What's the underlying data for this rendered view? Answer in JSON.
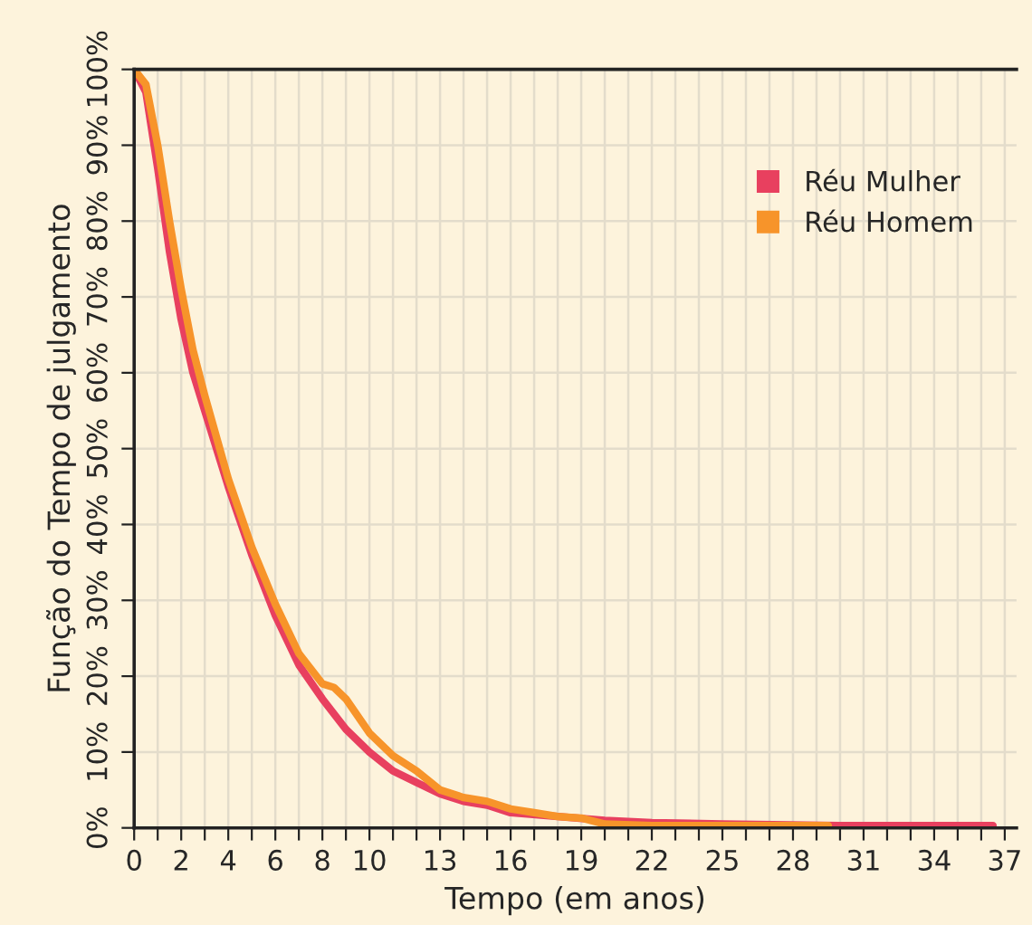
{
  "chart_data": {
    "type": "line",
    "xlabel": "Tempo (em anos)",
    "ylabel": "Função do Tempo de julgamento",
    "xlim": [
      0,
      37.5
    ],
    "ylim": [
      0,
      100
    ],
    "xticks": [
      0,
      {
        "value": 1,
        "label": null
      },
      2,
      {
        "value": 3,
        "label": null
      },
      4,
      {
        "value": 5,
        "label": null
      },
      6,
      {
        "value": 7,
        "label": null
      },
      8,
      {
        "value": 9,
        "label": null
      },
      10,
      {
        "value": 11,
        "label": null
      },
      {
        "value": 12,
        "label": null
      },
      13,
      {
        "value": 14,
        "label": null
      },
      {
        "value": 15,
        "label": null
      },
      16,
      {
        "value": 17,
        "label": null
      },
      {
        "value": 18,
        "label": null
      },
      19,
      {
        "value": 20,
        "label": null
      },
      {
        "value": 21,
        "label": null
      },
      22,
      {
        "value": 23,
        "label": null
      },
      {
        "value": 24,
        "label": null
      },
      25,
      {
        "value": 26,
        "label": null
      },
      {
        "value": 27,
        "label": null
      },
      28,
      {
        "value": 29,
        "label": null
      },
      {
        "value": 30,
        "label": null
      },
      31,
      {
        "value": 32,
        "label": null
      },
      {
        "value": 33,
        "label": null
      },
      34,
      {
        "value": 35,
        "label": null
      },
      {
        "value": 36,
        "label": null
      },
      37
    ],
    "yticks": [
      {
        "value": 0,
        "label": "0%"
      },
      {
        "value": 10,
        "label": "10%"
      },
      {
        "value": 20,
        "label": "20%"
      },
      {
        "value": 30,
        "label": "30%"
      },
      {
        "value": 40,
        "label": "40%"
      },
      {
        "value": 50,
        "label": "50%"
      },
      {
        "value": 60,
        "label": "60%"
      },
      {
        "value": 70,
        "label": "70%"
      },
      {
        "value": 80,
        "label": "80%"
      },
      {
        "value": 90,
        "label": "90%"
      },
      {
        "value": 100,
        "label": "100%"
      }
    ],
    "grid": true,
    "legend": "top right",
    "marker": "none",
    "line_style": "solid",
    "series": [
      {
        "name": "Réu Mulher",
        "color": "#e8405f",
        "x": [
          0,
          0.5,
          1,
          1.5,
          2,
          2.5,
          3,
          4,
          5,
          6,
          7,
          8,
          9,
          10,
          11,
          12,
          13,
          14,
          15,
          16,
          18,
          20,
          22,
          25,
          30,
          36.5
        ],
        "values": [
          100,
          97,
          87,
          76,
          67,
          60,
          55,
          45,
          36,
          28,
          21.5,
          17,
          13,
          10,
          7.5,
          6,
          4.5,
          3.5,
          3,
          2,
          1.5,
          1,
          0.7,
          0.5,
          0.3,
          0.3
        ]
      },
      {
        "name": "Réu Homem",
        "color": "#f7942a",
        "x": [
          0,
          0.5,
          1,
          1.5,
          2,
          2.5,
          3,
          4,
          5,
          6,
          7,
          8,
          8.5,
          9,
          10,
          11,
          12,
          13,
          14,
          15,
          16,
          17,
          18,
          19,
          20,
          22,
          29.5
        ],
        "values": [
          100,
          98,
          90,
          80,
          71,
          63,
          57,
          46,
          37,
          29.5,
          23,
          19,
          18.5,
          17,
          12.5,
          9.5,
          7.5,
          5,
          4,
          3.5,
          2.5,
          2,
          1.5,
          1.3,
          0.5,
          0.3,
          0.3
        ]
      }
    ]
  }
}
